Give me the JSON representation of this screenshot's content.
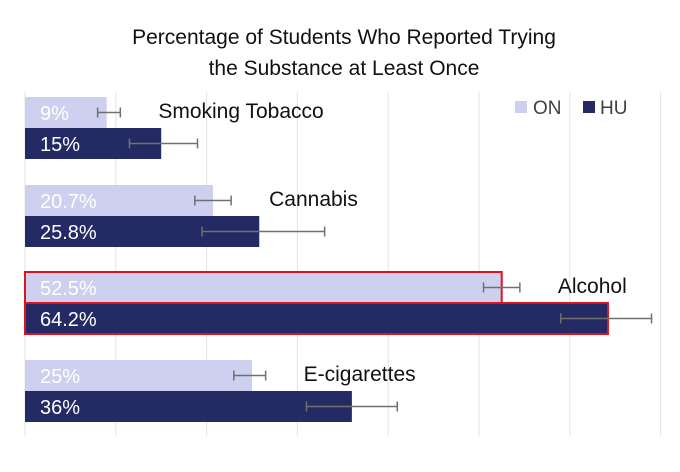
{
  "chart_data": {
    "type": "bar",
    "orientation": "horizontal",
    "title_lines": [
      "Percentage of Students Who Reported Trying",
      "the Substance at Least Once"
    ],
    "categories": [
      "Smoking Tobacco",
      "Cannabis",
      "Alcohol",
      "E-cigarettes"
    ],
    "series": [
      {
        "name": "ON",
        "color": "#cdd0ee",
        "values": [
          9,
          20.7,
          52.5,
          25
        ],
        "labels": [
          "9%",
          "20.7%",
          "52.5%",
          "25%"
        ],
        "error_low": [
          8,
          18.7,
          50.5,
          23
        ],
        "error_high": [
          10.5,
          22.7,
          54.5,
          26.5
        ]
      },
      {
        "name": "HU",
        "color": "#232a64",
        "values": [
          15,
          25.8,
          64.2,
          36
        ],
        "labels": [
          "15%",
          "25.8%",
          "64.2%",
          "36%"
        ],
        "error_low": [
          11.5,
          19.5,
          59,
          31
        ],
        "error_high": [
          19,
          33,
          69,
          41
        ]
      }
    ],
    "highlighted_category": "Alcohol",
    "highlight_color": "#e3101e",
    "xlim": [
      0,
      70
    ],
    "grid": "vertical",
    "legend": "top-right",
    "xlabel": "",
    "ylabel": ""
  }
}
